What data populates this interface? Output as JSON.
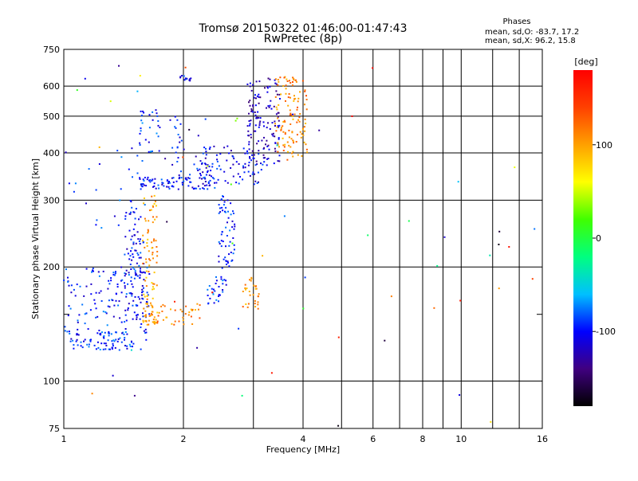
{
  "chart_data": {
    "type": "scatter",
    "title": "Tromsø 20150322 01:46:00-01:47:43",
    "subtitle": "RwPretec (8p)",
    "xlabel": "Frequency [MHz]",
    "ylabel": "Stationary phase Virtual Height [km]",
    "x_scale": "log",
    "y_scale": "log",
    "xlim": [
      1,
      16
    ],
    "ylim": [
      75,
      750
    ],
    "x_ticks": [
      1,
      2,
      4,
      6,
      8,
      10,
      16
    ],
    "x_tick_labels": [
      "1",
      "2",
      "4",
      "6",
      "8",
      "10",
      "16"
    ],
    "x_minor_ticks": [
      3,
      5,
      7,
      9,
      12,
      14
    ],
    "y_ticks": [
      75,
      100,
      200,
      300,
      400,
      500,
      600,
      750
    ],
    "y_tick_labels": [
      "75",
      "100",
      "200",
      "300",
      "400",
      "500",
      "600",
      "750"
    ],
    "y_minor_ticks": [
      150
    ],
    "grid": true,
    "info_header": "Phases",
    "info_lines": [
      "mean, sd,O: -83.7, 17.2",
      "mean, sd,X:  96.2, 15.8"
    ],
    "colorbar": {
      "label": "[deg]",
      "range": [
        -180,
        180
      ],
      "ticks": [
        100,
        0,
        -100
      ],
      "tick_labels": [
        "100",
        "0",
        "-100"
      ],
      "colors": [
        "#000000",
        "#400080",
        "#0000ff",
        "#00c0ff",
        "#00ff80",
        "#40ff00",
        "#ffff00",
        "#ffa000",
        "#ff4000",
        "#ff0000"
      ]
    },
    "groups": [
      {
        "f": [
          1.0,
          1.65
        ],
        "h": [
          120,
          200
        ],
        "phase": -95,
        "n": 150
      },
      {
        "f": [
          1.05,
          1.5
        ],
        "h": [
          120,
          135
        ],
        "phase": -90,
        "n": 60
      },
      {
        "f": [
          1.42,
          1.6
        ],
        "h": [
          140,
          300
        ],
        "phase": -100,
        "n": 110
      },
      {
        "f": [
          1.58,
          1.72
        ],
        "h": [
          140,
          310
        ],
        "phase": 100,
        "n": 90
      },
      {
        "f": [
          1.6,
          2.2
        ],
        "h": [
          140,
          160
        ],
        "phase": 110,
        "n": 50
      },
      {
        "f": [
          2.3,
          2.6
        ],
        "h": [
          160,
          190
        ],
        "phase": -90,
        "n": 30
      },
      {
        "f": [
          2.45,
          2.7
        ],
        "h": [
          200,
          310
        ],
        "phase": -95,
        "n": 60
      },
      {
        "f": [
          2.8,
          3.1
        ],
        "h": [
          155,
          190
        ],
        "phase": 105,
        "n": 30
      },
      {
        "f": [
          1.55,
          2.4
        ],
        "h": [
          320,
          345
        ],
        "phase": -100,
        "n": 80
      },
      {
        "f": [
          2.2,
          3.2
        ],
        "h": [
          330,
          420
        ],
        "phase": -105,
        "n": 90
      },
      {
        "f": [
          2.9,
          3.5
        ],
        "h": [
          370,
          630
        ],
        "phase": -120,
        "n": 130
      },
      {
        "f": [
          3.4,
          4.1
        ],
        "h": [
          380,
          640
        ],
        "phase": 110,
        "n": 120
      },
      {
        "f": [
          1.55,
          1.75
        ],
        "h": [
          400,
          520
        ],
        "phase": -90,
        "n": 30
      },
      {
        "f": [
          1.85,
          2.3
        ],
        "h": [
          340,
          500
        ],
        "phase": -100,
        "n": 40
      },
      {
        "f": [
          1.9,
          2.1
        ],
        "h": [
          620,
          640
        ],
        "phase": -100,
        "n": 12
      },
      {
        "f": [
          1.0,
          1.6
        ],
        "h": [
          250,
          420
        ],
        "phase": -95,
        "n": 25
      },
      {
        "f": [
          1.0,
          16.0
        ],
        "h": [
          75,
          750
        ],
        "phase": 0,
        "n": 60
      }
    ]
  }
}
